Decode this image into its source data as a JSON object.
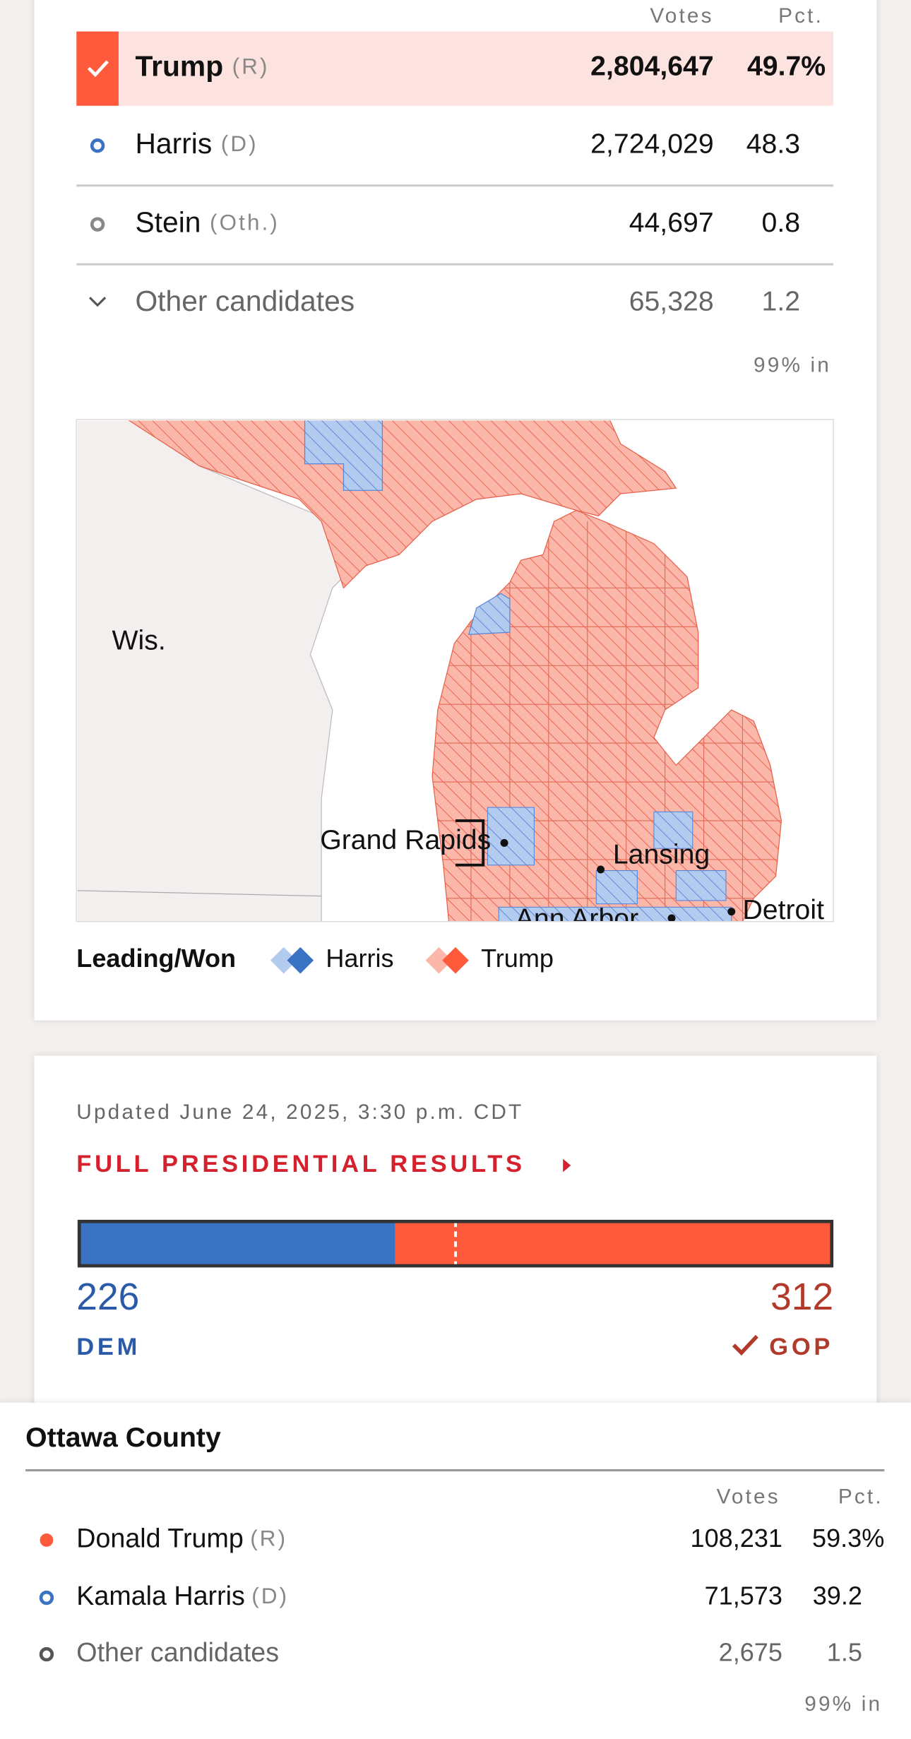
{
  "results": {
    "header": {
      "votes": "Votes",
      "pct": "Pct."
    },
    "rows": [
      {
        "name": "Trump",
        "party": "(R)",
        "votes": "2,804,647",
        "pct": "49.7%"
      },
      {
        "name": "Harris",
        "party": "(D)",
        "votes": "2,724,029",
        "pct": "48.3"
      },
      {
        "name": "Stein",
        "party": "(Oth.)",
        "votes": "44,697",
        "pct": "0.8"
      }
    ],
    "other": {
      "name": "Other candidates",
      "votes": "65,328",
      "pct": "1.2"
    },
    "reporting": "99% in"
  },
  "map": {
    "labels": [
      "Wis.",
      "Grand Rapids",
      "Lansing",
      "Ann Arbor",
      "Detroit"
    ]
  },
  "legend": {
    "title": "Leading/Won",
    "items": [
      "Harris",
      "Trump"
    ]
  },
  "electoral": {
    "updated": "Updated June 24, 2025, 3:30 p.m. CDT",
    "link": "FULL PRESIDENTIAL RESULTS",
    "dem": {
      "value": 226,
      "label": "DEM"
    },
    "gop": {
      "value": 312,
      "label": "GOP"
    }
  },
  "county": {
    "title": "Ottawa County",
    "header": {
      "votes": "Votes",
      "pct": "Pct."
    },
    "rows": [
      {
        "name": "Donald Trump",
        "party": "(R)",
        "votes": "108,231",
        "pct": "59.3%"
      },
      {
        "name": "Kamala Harris",
        "party": "(D)",
        "votes": "71,573",
        "pct": "39.2"
      },
      {
        "name": "Other candidates",
        "votes": "2,675",
        "pct": "1.5"
      }
    ],
    "reporting": "99% in"
  }
}
